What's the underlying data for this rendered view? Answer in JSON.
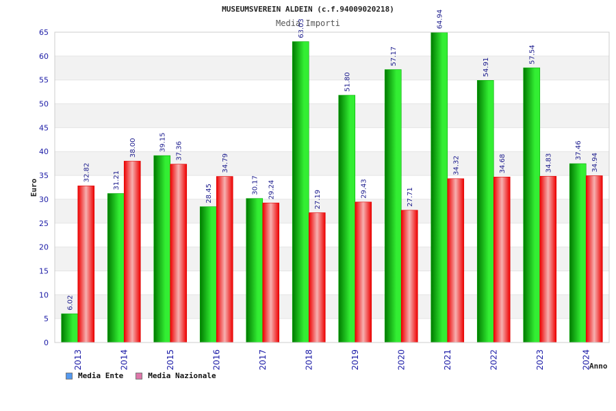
{
  "colors": {
    "ente_swatch": "#5599ee",
    "nazionale_swatch": "#dd77aa",
    "ente_bar_dark": "#007a00",
    "ente_bar_light": "#33ee33",
    "nazionale_bar_dark": "#ee0000",
    "nazionale_bar_light": "#f6b0b0",
    "grid_band": "#f2f2f2",
    "tick_text": "#1a1aa6"
  },
  "legend": {
    "ente": "Media Ente",
    "nazionale": "Media Nazionale"
  },
  "chart_data": {
    "type": "bar",
    "title": "MUSEUMSVEREIN ALDEIN (c.f.94009020218)",
    "subtitle": "Media Importi",
    "xlabel": "Anno",
    "ylabel": "Euro",
    "ylim": [
      0,
      65
    ],
    "yticks": [
      "0",
      "5",
      "10",
      "15",
      "20",
      "25",
      "30",
      "35",
      "40",
      "45",
      "50",
      "55",
      "60",
      "65"
    ],
    "categories": [
      "2013",
      "2014",
      "2015",
      "2016",
      "2017",
      "2018",
      "2019",
      "2020",
      "2021",
      "2022",
      "2023",
      "2024"
    ],
    "series": [
      {
        "name": "Media Ente",
        "values": [
          6.02,
          31.21,
          39.15,
          28.45,
          30.17,
          63.03,
          51.8,
          57.17,
          64.94,
          54.91,
          57.54,
          37.46
        ],
        "labels": [
          "6.02",
          "31.21",
          "39.15",
          "28.45",
          "30.17",
          "63.03",
          "51.80",
          "57.17",
          "64.94",
          "54.91",
          "57.54",
          "37.46"
        ]
      },
      {
        "name": "Media Nazionale",
        "values": [
          32.82,
          38.0,
          37.36,
          34.79,
          29.24,
          27.19,
          29.43,
          27.71,
          34.32,
          34.68,
          34.83,
          34.94
        ],
        "labels": [
          "32.82",
          "38.00",
          "37.36",
          "34.79",
          "29.24",
          "27.19",
          "29.43",
          "27.71",
          "34.32",
          "34.68",
          "34.83",
          "34.94"
        ]
      }
    ],
    "grid": true,
    "legend_position": "bottom-left"
  }
}
